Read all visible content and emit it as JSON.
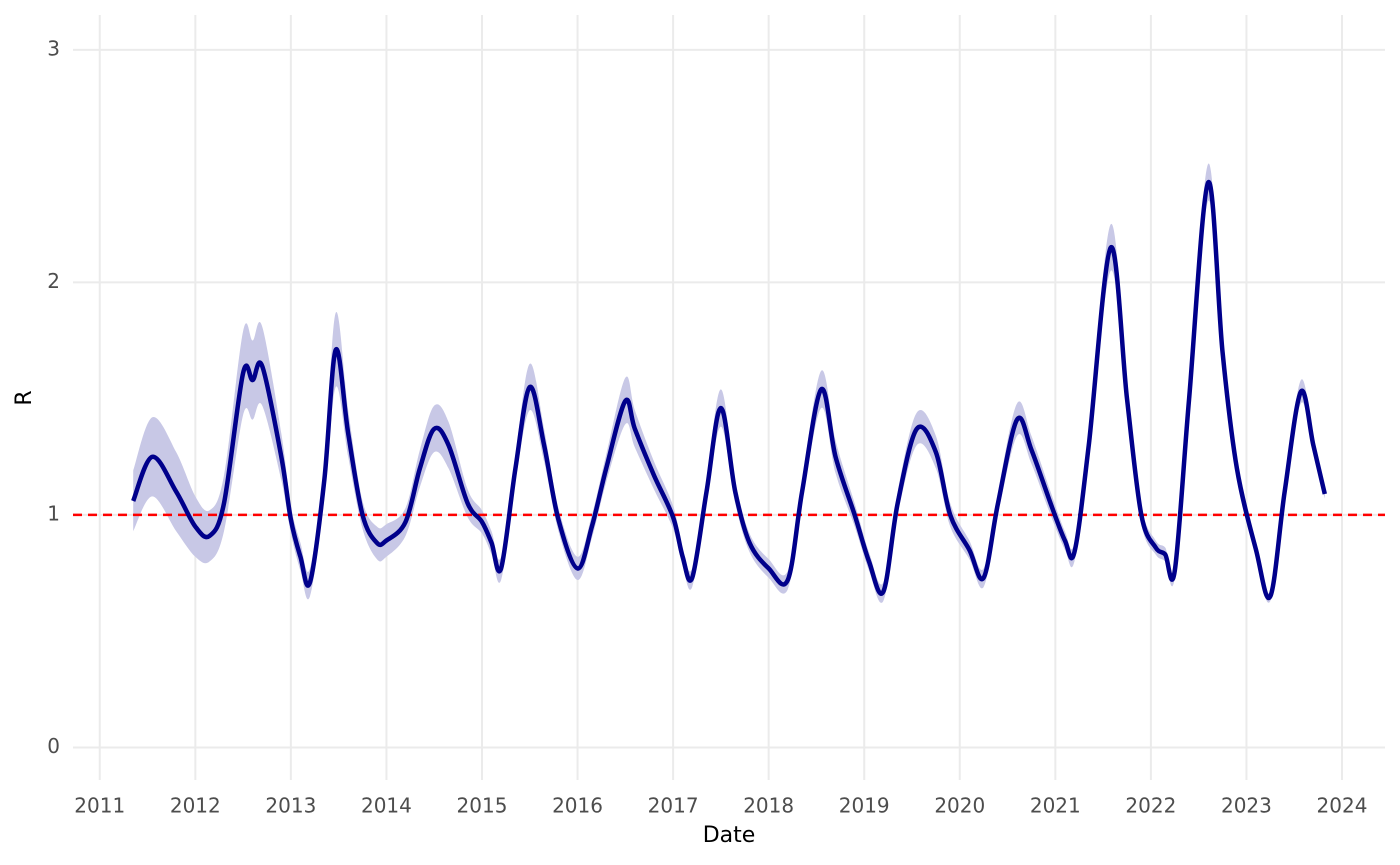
{
  "chart_data": {
    "type": "ribbon-line",
    "xlabel": "Date",
    "ylabel": "R",
    "x": [
      2011.35,
      2011.55,
      2011.8,
      2012.0,
      2012.15,
      2012.3,
      2012.5,
      2012.6,
      2012.7,
      2012.9,
      2013.0,
      2013.1,
      2013.2,
      2013.35,
      2013.47,
      2013.6,
      2013.75,
      2013.9,
      2014.0,
      2014.2,
      2014.35,
      2014.5,
      2014.65,
      2014.85,
      2015.0,
      2015.1,
      2015.2,
      2015.35,
      2015.5,
      2015.65,
      2015.8,
      2016.0,
      2016.15,
      2016.3,
      2016.5,
      2016.6,
      2016.8,
      2017.0,
      2017.1,
      2017.2,
      2017.35,
      2017.5,
      2017.65,
      2017.8,
      2018.0,
      2018.2,
      2018.35,
      2018.55,
      2018.7,
      2018.9,
      2019.05,
      2019.2,
      2019.35,
      2019.55,
      2019.75,
      2019.9,
      2020.1,
      2020.25,
      2020.4,
      2020.6,
      2020.75,
      2020.95,
      2021.1,
      2021.2,
      2021.35,
      2021.58,
      2021.75,
      2021.9,
      2022.05,
      2022.15,
      2022.25,
      2022.4,
      2022.6,
      2022.75,
      2022.9,
      2023.1,
      2023.25,
      2023.4,
      2023.57,
      2023.7,
      2023.82
    ],
    "values": [
      1.06,
      1.25,
      1.1,
      0.95,
      0.91,
      1.05,
      1.61,
      1.58,
      1.64,
      1.25,
      0.98,
      0.82,
      0.71,
      1.15,
      1.71,
      1.35,
      1.0,
      0.88,
      0.89,
      0.97,
      1.2,
      1.37,
      1.3,
      1.05,
      0.97,
      0.88,
      0.77,
      1.2,
      1.55,
      1.3,
      0.98,
      0.77,
      0.95,
      1.2,
      1.49,
      1.37,
      1.17,
      0.99,
      0.82,
      0.73,
      1.1,
      1.46,
      1.1,
      0.88,
      0.77,
      0.72,
      1.1,
      1.54,
      1.25,
      1.0,
      0.8,
      0.67,
      1.05,
      1.37,
      1.27,
      1.0,
      0.85,
      0.73,
      1.05,
      1.41,
      1.28,
      1.05,
      0.89,
      0.84,
      1.3,
      2.15,
      1.5,
      1.0,
      0.86,
      0.83,
      0.76,
      1.5,
      2.43,
      1.7,
      1.2,
      0.85,
      0.65,
      1.1,
      1.53,
      1.3,
      1.09
    ],
    "lower": [
      0.93,
      1.08,
      0.93,
      0.82,
      0.8,
      0.93,
      1.43,
      1.41,
      1.47,
      1.15,
      0.92,
      0.76,
      0.65,
      1.07,
      1.55,
      1.25,
      0.94,
      0.81,
      0.82,
      0.91,
      1.12,
      1.27,
      1.2,
      0.99,
      0.92,
      0.83,
      0.72,
      1.14,
      1.45,
      1.23,
      0.93,
      0.72,
      0.9,
      1.14,
      1.39,
      1.29,
      1.11,
      0.94,
      0.78,
      0.69,
      1.05,
      1.38,
      1.05,
      0.84,
      0.73,
      0.68,
      1.05,
      1.46,
      1.18,
      0.95,
      0.76,
      0.63,
      1.0,
      1.3,
      1.2,
      0.95,
      0.81,
      0.69,
      1.0,
      1.34,
      1.22,
      1.0,
      0.85,
      0.8,
      1.25,
      2.05,
      1.44,
      0.96,
      0.83,
      0.8,
      0.73,
      1.45,
      2.35,
      1.65,
      1.17,
      0.82,
      0.63,
      1.07,
      1.48,
      1.27,
      1.07
    ],
    "upper": [
      1.19,
      1.42,
      1.27,
      1.08,
      1.02,
      1.17,
      1.79,
      1.75,
      1.81,
      1.35,
      1.04,
      0.88,
      0.77,
      1.23,
      1.87,
      1.45,
      1.06,
      0.95,
      0.96,
      1.03,
      1.28,
      1.47,
      1.4,
      1.11,
      1.02,
      0.93,
      0.82,
      1.26,
      1.65,
      1.37,
      1.03,
      0.82,
      1.0,
      1.26,
      1.59,
      1.45,
      1.23,
      1.04,
      0.86,
      0.77,
      1.15,
      1.54,
      1.15,
      0.92,
      0.81,
      0.76,
      1.15,
      1.62,
      1.32,
      1.05,
      0.84,
      0.71,
      1.1,
      1.44,
      1.34,
      1.05,
      0.89,
      0.77,
      1.1,
      1.48,
      1.34,
      1.1,
      0.93,
      0.88,
      1.35,
      2.25,
      1.56,
      1.04,
      0.89,
      0.86,
      0.79,
      1.55,
      2.51,
      1.75,
      1.23,
      0.88,
      0.67,
      1.13,
      1.58,
      1.33,
      1.11
    ],
    "color": "#00008b",
    "band_color": "#c8c8e6",
    "hline": 1,
    "hline_color": "#ff0000",
    "xlim": [
      2010.72,
      2024.45
    ],
    "xticks": [
      2011,
      2012,
      2013,
      2014,
      2015,
      2016,
      2017,
      2018,
      2019,
      2020,
      2021,
      2022,
      2023,
      2024
    ],
    "ylim": [
      -0.14,
      3.15
    ],
    "yticks": [
      0,
      1,
      2,
      3
    ],
    "grid": true
  }
}
